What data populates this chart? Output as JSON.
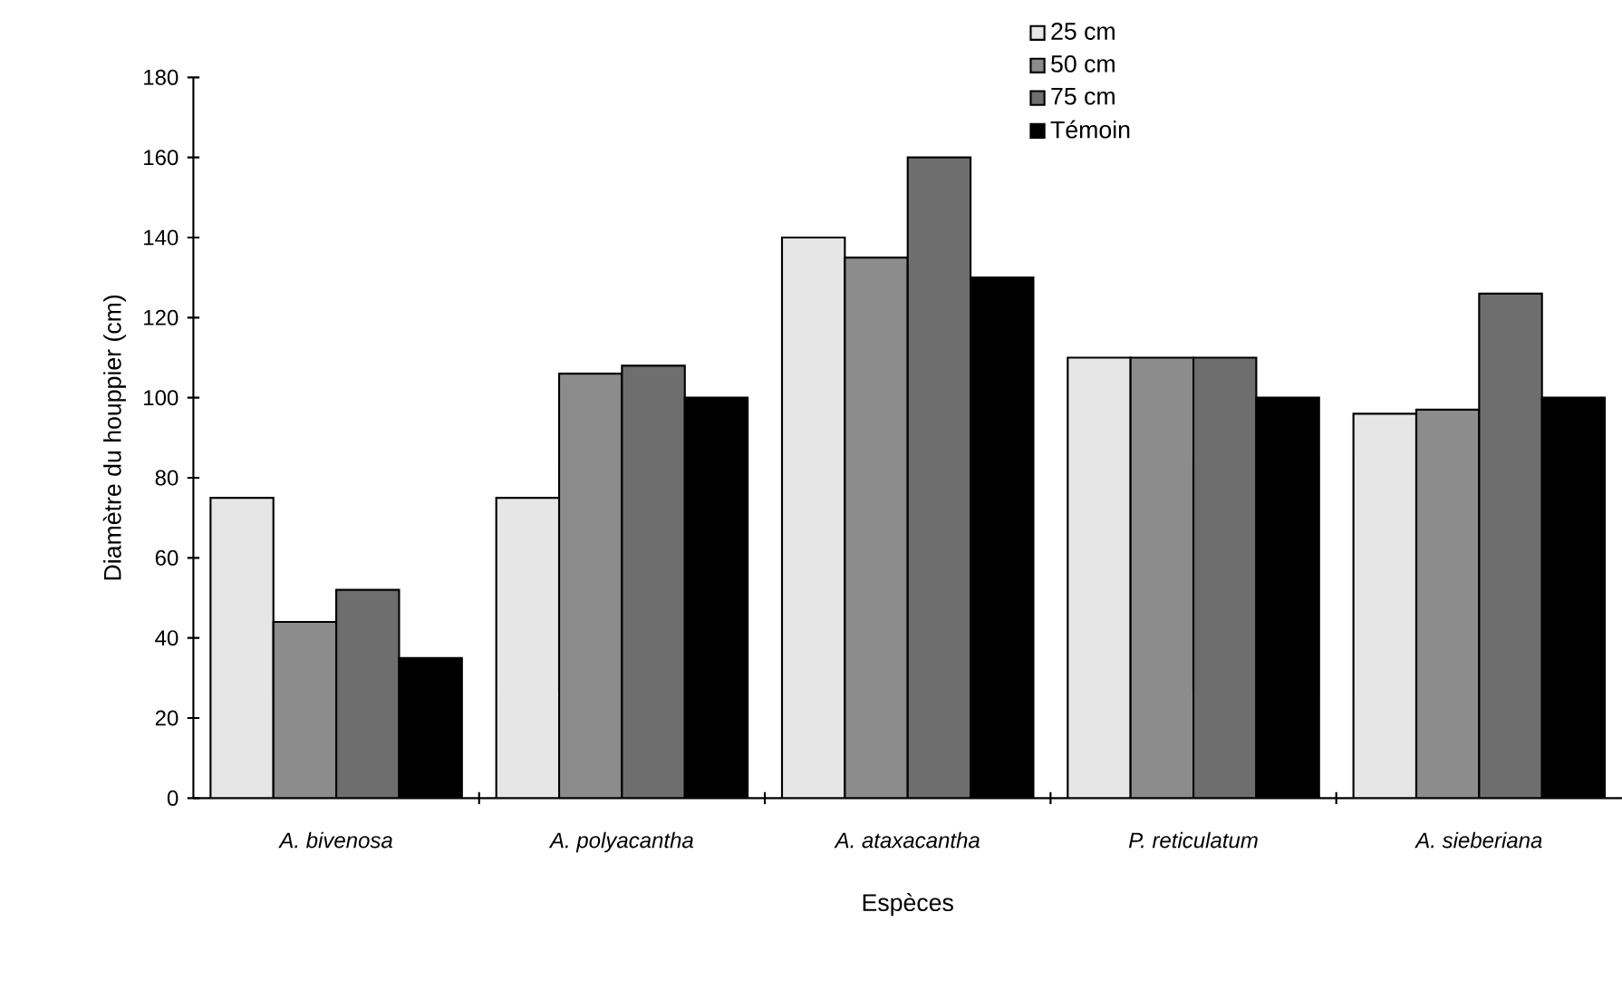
{
  "chart_data": {
    "type": "bar",
    "xlabel": "Espèces",
    "ylabel": "Diamètre du houppier (cm)",
    "categories": [
      "A. bivenosa",
      "A. polyacantha",
      "A. ataxacantha",
      "P. reticulatum",
      "A. sieberiana"
    ],
    "series": [
      {
        "name": "25 cm",
        "color": "#e6e6e6",
        "values": [
          75,
          75,
          140,
          110,
          96
        ]
      },
      {
        "name": "50 cm",
        "color": "#8c8c8c",
        "values": [
          44,
          106,
          135,
          110,
          97
        ]
      },
      {
        "name": "75 cm",
        "color": "#6e6e6e",
        "values": [
          52,
          108,
          160,
          110,
          126
        ]
      },
      {
        "name": "Témoin",
        "color": "#000000",
        "values": [
          35,
          100,
          130,
          100,
          100
        ]
      }
    ],
    "ylim": [
      0,
      180
    ],
    "yticks": [
      0,
      20,
      40,
      60,
      80,
      100,
      120,
      140,
      160,
      180
    ],
    "legend": "top right"
  }
}
